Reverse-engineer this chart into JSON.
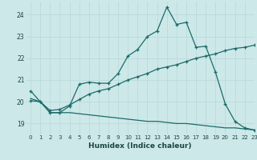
{
  "title": "",
  "xlabel": "Humidex (Indice chaleur)",
  "bg_color": "#cde8e8",
  "line_color": "#1a6b6b",
  "grid_color": "#b8d8d8",
  "xlim": [
    -0.5,
    23
  ],
  "ylim": [
    18.5,
    24.6
  ],
  "yticks": [
    19,
    20,
    21,
    22,
    23,
    24
  ],
  "xticks": [
    0,
    1,
    2,
    3,
    4,
    5,
    6,
    7,
    8,
    9,
    10,
    11,
    12,
    13,
    14,
    15,
    16,
    17,
    18,
    19,
    20,
    21,
    22,
    23
  ],
  "xtick_labels": [
    "0",
    "1",
    "2",
    "3",
    "4",
    "5",
    "6",
    "7",
    "8",
    "9",
    "10",
    "11",
    "12",
    "13",
    "14",
    "15",
    "16",
    "17",
    "18",
    "19",
    "20",
    "21",
    "22",
    "23"
  ],
  "series1_x": [
    0,
    1,
    2,
    3,
    4,
    5,
    6,
    7,
    8,
    9,
    10,
    11,
    12,
    13,
    14,
    15,
    16,
    17,
    18,
    19,
    20,
    21,
    22,
    23
  ],
  "series1_y": [
    20.5,
    20.0,
    19.5,
    19.5,
    19.8,
    20.8,
    20.9,
    20.85,
    20.85,
    21.3,
    22.1,
    22.4,
    23.0,
    23.25,
    24.35,
    23.55,
    23.65,
    22.5,
    22.55,
    21.35,
    19.9,
    19.1,
    18.8,
    18.7
  ],
  "series2_x": [
    0,
    1,
    2,
    3,
    4,
    5,
    6,
    7,
    8,
    9,
    10,
    11,
    12,
    13,
    14,
    15,
    16,
    17,
    18,
    19,
    20,
    21,
    22,
    23
  ],
  "series2_y": [
    20.05,
    20.0,
    19.6,
    19.65,
    19.85,
    20.1,
    20.35,
    20.5,
    20.6,
    20.8,
    21.0,
    21.15,
    21.3,
    21.5,
    21.6,
    21.7,
    21.85,
    22.0,
    22.1,
    22.2,
    22.35,
    22.45,
    22.5,
    22.6
  ],
  "series3_x": [
    0,
    1,
    2,
    3,
    4,
    5,
    6,
    7,
    8,
    9,
    10,
    11,
    12,
    13,
    14,
    15,
    16,
    17,
    18,
    19,
    20,
    21,
    22,
    23
  ],
  "series3_y": [
    20.15,
    20.0,
    19.5,
    19.5,
    19.5,
    19.45,
    19.4,
    19.35,
    19.3,
    19.25,
    19.2,
    19.15,
    19.1,
    19.1,
    19.05,
    19.0,
    19.0,
    18.95,
    18.9,
    18.85,
    18.8,
    18.8,
    18.75,
    18.7
  ]
}
